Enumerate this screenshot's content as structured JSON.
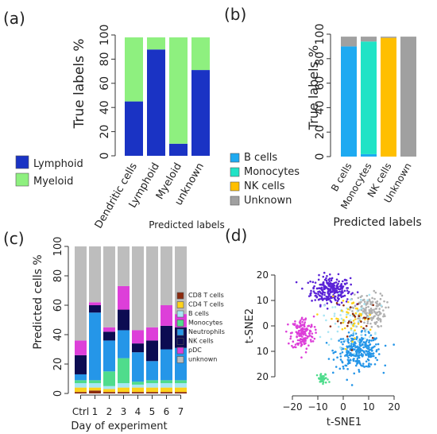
{
  "panel_labels": [
    "(a)",
    "(b)",
    "(c)",
    "(d)"
  ],
  "chart_data": [
    {
      "panel": "(a)",
      "type": "bar",
      "stacked": true,
      "categories": [
        "Dendritic cells",
        "Lymphoid",
        "Myeloid",
        "unknown"
      ],
      "series": [
        {
          "name": "Lymphoid",
          "values": [
            45,
            88,
            10,
            71
          ],
          "color": "#1a33c4"
        },
        {
          "name": "Myeloid",
          "values": [
            53,
            10,
            88,
            27
          ],
          "color": "#8ef07f"
        }
      ],
      "xlabel": "Predicted labels",
      "ylabel": "True labels %",
      "yticks": [
        "0",
        "20",
        "40",
        "60",
        "80",
        "100"
      ],
      "ylim": [
        0,
        100
      ],
      "legend_position": "left",
      "grid": false
    },
    {
      "panel": "(b)",
      "type": "bar",
      "stacked": true,
      "categories": [
        "B cells",
        "Monocytes",
        "NK cells",
        "Unknown"
      ],
      "series": [
        {
          "name": "B cells",
          "values": [
            90,
            2,
            0,
            0
          ],
          "color": "#1eaaf1"
        },
        {
          "name": "Monocytes",
          "values": [
            0,
            92,
            0,
            0
          ],
          "color": "#20e3c6"
        },
        {
          "name": "NK cells",
          "values": [
            0,
            0,
            97,
            0
          ],
          "color": "#ffbf00"
        },
        {
          "name": "Unknown",
          "values": [
            8,
            4,
            1,
            98
          ],
          "color": "#a0a0a0"
        }
      ],
      "xlabel": "Predicted labels",
      "ylabel": "True labels %",
      "yticks": [
        "0",
        "20",
        "40",
        "60",
        "80",
        "100"
      ],
      "ylim": [
        0,
        100
      ],
      "legend_position": "left",
      "grid": false
    },
    {
      "panel": "(c)",
      "type": "bar",
      "stacked": true,
      "categories": [
        "Ctrl",
        "1",
        "2",
        "3",
        "4",
        "5",
        "6",
        "7"
      ],
      "series": [
        {
          "name": "CD8 T cells",
          "values": [
            1,
            2,
            1,
            1,
            1,
            1,
            1,
            1
          ],
          "color": "#8b2a0e"
        },
        {
          "name": "CD4 T cells",
          "values": [
            3,
            2,
            2,
            3,
            3,
            3,
            3,
            3
          ],
          "color": "#ffd21a"
        },
        {
          "name": "B cells",
          "values": [
            3,
            3,
            2,
            3,
            2,
            3,
            3,
            3
          ],
          "color": "#a8e6f5"
        },
        {
          "name": "Monocytes",
          "values": [
            2,
            2,
            10,
            17,
            2,
            2,
            2,
            2
          ],
          "color": "#4fdc8c"
        },
        {
          "name": "Neutrophils",
          "values": [
            4,
            46,
            21,
            19,
            20,
            13,
            21,
            22
          ],
          "color": "#2596e8"
        },
        {
          "name": "NK cells",
          "values": [
            13,
            5,
            6,
            14,
            6,
            14,
            16,
            14
          ],
          "color": "#0c0c52"
        },
        {
          "name": "pDC",
          "values": [
            10,
            2,
            3,
            16,
            9,
            9,
            14,
            9
          ],
          "color": "#dd3fd9"
        },
        {
          "name": "unknown",
          "values": [
            64,
            38,
            55,
            27,
            57,
            55,
            40,
            46
          ],
          "color": "#bdbdbd"
        }
      ],
      "xlabel": "Day of experiment",
      "ylabel": "Predicted cells %",
      "yticks": [
        "0",
        "20",
        "40",
        "60",
        "80",
        "100"
      ],
      "ylim": [
        0,
        100
      ],
      "legend_position": "right",
      "grid": false
    },
    {
      "panel": "(d)",
      "type": "scatter",
      "xlabel": "t-SNE1",
      "ylabel": "t-SNE2",
      "xticks": [
        "−20",
        "−10",
        "0",
        "10",
        "20"
      ],
      "yticks": [
        "20",
        "10",
        "0",
        "10",
        "20"
      ],
      "xlim": [
        -25,
        25
      ],
      "ylim": [
        -25,
        25
      ],
      "clusters": [
        {
          "name": "NK cells",
          "color": "#5a22d6",
          "center": [
            -5,
            14
          ],
          "spread": [
            7,
            5
          ],
          "count": 260
        },
        {
          "name": "Neutrophils",
          "color": "#2596e8",
          "center": [
            6,
            -10
          ],
          "spread": [
            8,
            6
          ],
          "count": 300
        },
        {
          "name": "pDC",
          "color": "#dd3fd9",
          "center": [
            -16,
            -3
          ],
          "spread": [
            4,
            6
          ],
          "count": 160
        },
        {
          "name": "unknown",
          "color": "#b0b0b0",
          "center": [
            10,
            6
          ],
          "spread": [
            6,
            6
          ],
          "count": 150
        },
        {
          "name": "Monocytes",
          "color": "#4fdc8c",
          "center": [
            -8,
            -21
          ],
          "spread": [
            2,
            2
          ],
          "count": 40
        },
        {
          "name": "B cells",
          "color": "#a8e6f5",
          "center": [
            2,
            2
          ],
          "spread": [
            9,
            9
          ],
          "count": 70
        },
        {
          "name": "CD4 T cells",
          "color": "#ffd21a",
          "center": [
            3,
            3
          ],
          "spread": [
            8,
            7
          ],
          "count": 45
        },
        {
          "name": "CD8 T cells",
          "color": "#8b2a0e",
          "center": [
            6,
            2
          ],
          "spread": [
            9,
            8
          ],
          "count": 25
        }
      ],
      "grid": false
    }
  ]
}
